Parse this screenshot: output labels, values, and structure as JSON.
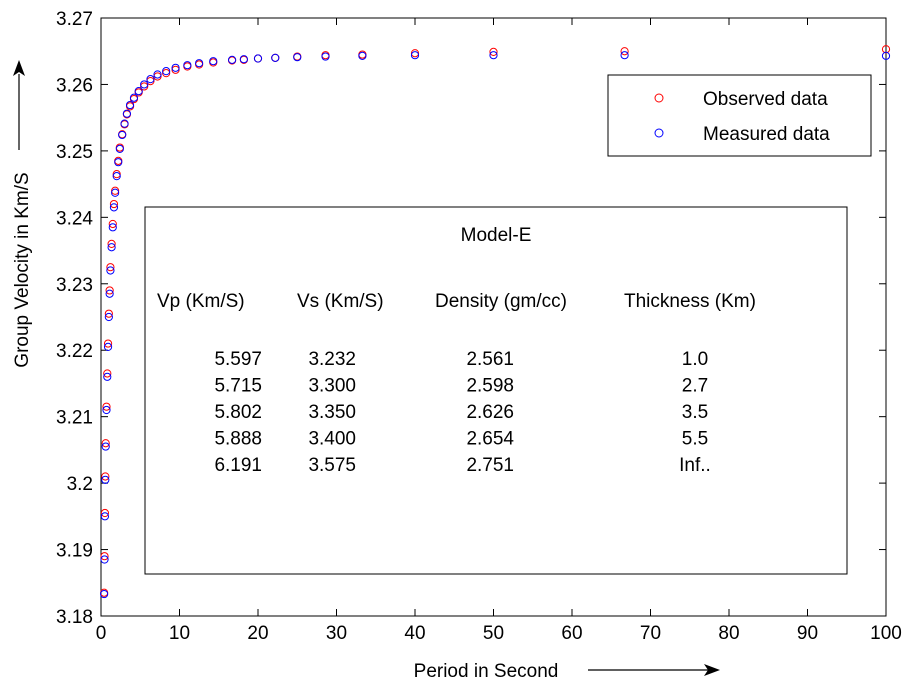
{
  "chart_data": {
    "type": "scatter",
    "xlabel": "Period in Second",
    "ylabel": "Group Velocity in Km/S",
    "xlim": [
      0,
      100
    ],
    "ylim": [
      3.18,
      3.27
    ],
    "xticks": [
      "0",
      "10",
      "20",
      "30",
      "40",
      "50",
      "60",
      "70",
      "80",
      "90",
      "100"
    ],
    "yticks": [
      "3.18",
      "3.19",
      "3.2",
      "3.21",
      "3.22",
      "3.23",
      "3.24",
      "3.25",
      "3.26",
      "3.27"
    ],
    "grid": false,
    "legend_position": "top-right",
    "series": [
      {
        "name": "Observed data",
        "color": "#ff0000",
        "marker": "circle-open",
        "points": [
          [
            0.4,
            3.1835
          ],
          [
            0.45,
            3.189
          ],
          [
            0.5,
            3.1955
          ],
          [
            0.55,
            3.201
          ],
          [
            0.6,
            3.206
          ],
          [
            0.7,
            3.2115
          ],
          [
            0.8,
            3.2165
          ],
          [
            0.9,
            3.221
          ],
          [
            1.0,
            3.2255
          ],
          [
            1.1,
            3.229
          ],
          [
            1.2,
            3.2325
          ],
          [
            1.35,
            3.236
          ],
          [
            1.5,
            3.239
          ],
          [
            1.65,
            3.242
          ],
          [
            1.8,
            3.244
          ],
          [
            2.0,
            3.2465
          ],
          [
            2.2,
            3.2485
          ],
          [
            2.4,
            3.2505
          ],
          [
            2.7,
            3.2525
          ],
          [
            3.0,
            3.254
          ],
          [
            3.3,
            3.2555
          ],
          [
            3.7,
            3.2567
          ],
          [
            4.2,
            3.2578
          ],
          [
            4.8,
            3.2588
          ],
          [
            5.5,
            3.2597
          ],
          [
            6.3,
            3.2605
          ],
          [
            7.2,
            3.2612
          ],
          [
            8.3,
            3.2617
          ],
          [
            9.5,
            3.2622
          ],
          [
            11.0,
            3.2627
          ],
          [
            12.5,
            3.263
          ],
          [
            14.3,
            3.2633
          ],
          [
            16.7,
            3.2636
          ],
          [
            18.2,
            3.2637
          ],
          [
            20.0,
            3.2639
          ],
          [
            22.2,
            3.264
          ],
          [
            25.0,
            3.2642
          ],
          [
            28.6,
            3.2644
          ],
          [
            33.3,
            3.2645
          ],
          [
            40.0,
            3.2647
          ],
          [
            50.0,
            3.2649
          ],
          [
            66.7,
            3.265
          ],
          [
            100.0,
            3.2653
          ]
        ]
      },
      {
        "name": "Measured data",
        "color": "#0000ff",
        "marker": "circle-open",
        "points": [
          [
            0.4,
            3.1833
          ],
          [
            0.45,
            3.1885
          ],
          [
            0.5,
            3.195
          ],
          [
            0.55,
            3.2005
          ],
          [
            0.6,
            3.2055
          ],
          [
            0.7,
            3.211
          ],
          [
            0.8,
            3.216
          ],
          [
            0.9,
            3.2205
          ],
          [
            1.0,
            3.225
          ],
          [
            1.1,
            3.2285
          ],
          [
            1.2,
            3.232
          ],
          [
            1.35,
            3.2355
          ],
          [
            1.5,
            3.2385
          ],
          [
            1.65,
            3.2415
          ],
          [
            1.8,
            3.2437
          ],
          [
            2.0,
            3.2462
          ],
          [
            2.2,
            3.2483
          ],
          [
            2.4,
            3.2503
          ],
          [
            2.7,
            3.2524
          ],
          [
            3.0,
            3.2541
          ],
          [
            3.3,
            3.2556
          ],
          [
            3.7,
            3.2569
          ],
          [
            4.2,
            3.258
          ],
          [
            4.8,
            3.259
          ],
          [
            5.5,
            3.26
          ],
          [
            6.3,
            3.2608
          ],
          [
            7.2,
            3.2615
          ],
          [
            8.3,
            3.262
          ],
          [
            9.5,
            3.2625
          ],
          [
            11.0,
            3.2629
          ],
          [
            12.5,
            3.2632
          ],
          [
            14.3,
            3.2635
          ],
          [
            16.7,
            3.2637
          ],
          [
            18.2,
            3.2638
          ],
          [
            20.0,
            3.2639
          ],
          [
            22.2,
            3.264
          ],
          [
            25.0,
            3.2641
          ],
          [
            28.6,
            3.2642
          ],
          [
            33.3,
            3.2643
          ],
          [
            40.0,
            3.2644
          ],
          [
            50.0,
            3.2644
          ],
          [
            66.7,
            3.2644
          ],
          [
            100.0,
            3.2643
          ]
        ]
      }
    ],
    "annotation_table": {
      "title": "Model-E",
      "headers": [
        "Vp (Km/S)",
        "Vs (Km/S)",
        "Density (gm/cc)",
        "Thickness (Km)"
      ],
      "rows": [
        [
          "5.597",
          "3.232",
          "2.561",
          "1.0"
        ],
        [
          "5.715",
          "3.300",
          "2.598",
          "2.7"
        ],
        [
          "5.802",
          "3.350",
          "2.626",
          "3.5"
        ],
        [
          "5.888",
          "3.400",
          "2.654",
          "5.5"
        ],
        [
          "6.191",
          "3.575",
          "2.751",
          "Inf.."
        ]
      ]
    }
  }
}
